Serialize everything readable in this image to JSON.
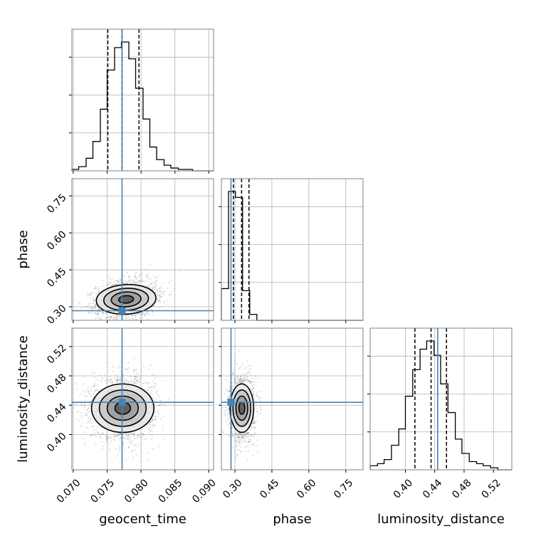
{
  "chart_data": {
    "type": "corner",
    "parameters": [
      "geocent_time",
      "phase",
      "luminosity_distance"
    ],
    "axis_labels": {
      "geocent_time": "geocent_time",
      "phase": "phase",
      "luminosity_distance": "luminosity_distance"
    },
    "ranges": {
      "geocent_time": [
        0.0698,
        0.0907
      ],
      "phase": [
        0.245,
        0.82
      ],
      "luminosity_distance": [
        0.352,
        0.545
      ]
    },
    "ticks": {
      "geocent_time": [
        "0.070",
        "0.075",
        "0.080",
        "0.085",
        "0.090"
      ],
      "phase": [
        "0.30",
        "0.45",
        "0.60",
        "0.75"
      ],
      "luminosity_distance": [
        "0.40",
        "0.44",
        "0.48",
        "0.52"
      ]
    },
    "truths": {
      "geocent_time": 0.0772,
      "phase": 0.284,
      "luminosity_distance": 0.444
    },
    "quantiles": {
      "geocent_time": [
        0.0751,
        0.0772,
        0.0797
      ],
      "phase": [
        0.294,
        0.327,
        0.357
      ],
      "luminosity_distance": [
        0.413,
        0.435,
        0.456
      ]
    },
    "histograms": {
      "geocent_time": {
        "edges": [
          0.0698,
          0.0708,
          0.0719,
          0.0729,
          0.074,
          0.075,
          0.0761,
          0.0771,
          0.0782,
          0.0792,
          0.0803,
          0.0813,
          0.0823,
          0.0834,
          0.0844,
          0.0855,
          0.0865,
          0.0876,
          0.0886,
          0.0896,
          0.0907
        ],
        "counts": [
          1,
          3,
          9,
          21,
          44,
          72,
          88,
          92,
          80,
          59,
          37,
          17,
          8,
          4,
          2,
          1,
          1,
          0,
          0,
          0
        ]
      },
      "phase": {
        "edges": [
          0.245,
          0.274,
          0.302,
          0.331,
          0.36,
          0.389,
          0.417,
          0.446,
          0.475,
          0.504,
          0.532,
          0.561,
          0.59,
          0.619,
          0.647,
          0.676,
          0.705,
          0.734,
          0.762,
          0.791,
          0.82
        ],
        "counts": [
          16,
          65,
          62,
          15,
          3,
          0,
          0,
          0,
          0,
          0,
          0,
          0,
          0,
          0,
          0,
          0,
          0,
          0,
          0,
          0
        ]
      },
      "luminosity_distance": {
        "edges": [
          0.352,
          0.362,
          0.371,
          0.381,
          0.391,
          0.4,
          0.41,
          0.42,
          0.429,
          0.439,
          0.448,
          0.458,
          0.468,
          0.477,
          0.487,
          0.497,
          0.506,
          0.516,
          0.526,
          0.535,
          0.545
        ],
        "counts": [
          2,
          3,
          5,
          12,
          20,
          36,
          49,
          59,
          63,
          56,
          42,
          28,
          15,
          8,
          4,
          3,
          2,
          1,
          0,
          0
        ]
      }
    },
    "joint": [
      {
        "x": "geocent_time",
        "y": "phase",
        "center": [
          0.0778,
          0.33
        ],
        "sigma": [
          0.0022,
          0.03
        ],
        "tilt": 0.22,
        "contour_levels": [
          0.5,
          1.0,
          1.5,
          2.0
        ]
      },
      {
        "x": "geocent_time",
        "y": "luminosity_distance",
        "center": [
          0.0773,
          0.436
        ],
        "sigma": [
          0.0023,
          0.0165
        ],
        "tilt": 0.0,
        "contour_levels": [
          0.5,
          1.0,
          1.5,
          2.0
        ]
      },
      {
        "x": "phase",
        "y": "luminosity_distance",
        "center": [
          0.328,
          0.436
        ],
        "sigma": [
          0.024,
          0.0165
        ],
        "tilt": 0.0,
        "contour_levels": [
          0.5,
          1.0,
          1.5,
          2.0
        ]
      }
    ],
    "colors": {
      "truth": "#4682b4",
      "histogram": "#000000",
      "points": "#808080",
      "grid": "#b0b0b0",
      "frame": "#808080"
    },
    "grid": true
  }
}
